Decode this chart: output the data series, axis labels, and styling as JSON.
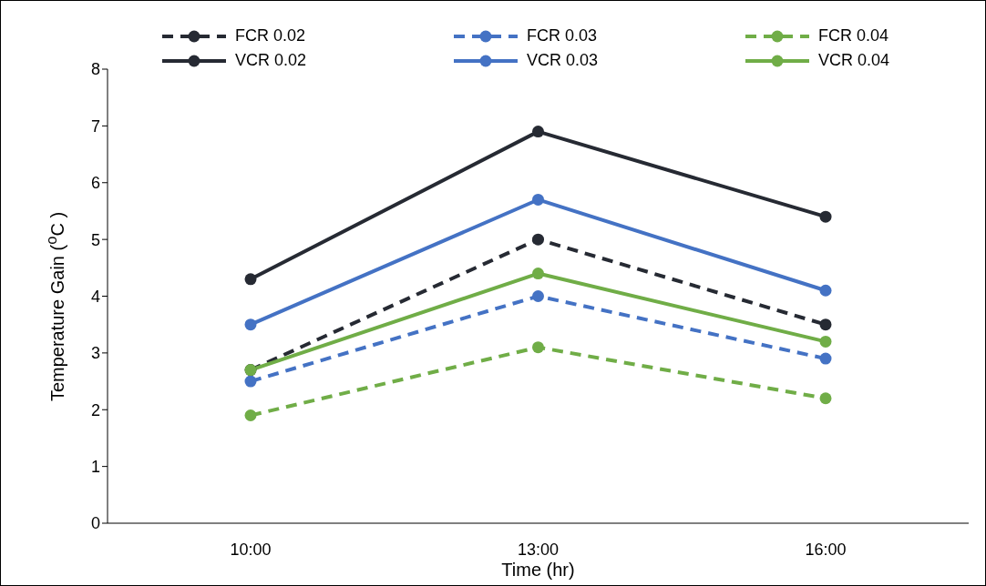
{
  "chart_data": {
    "type": "line",
    "xlabel": "Time (hr)",
    "ylabel": "Temperature Gain ($^{o}$C )",
    "categories": [
      "10:00",
      "13:00",
      "16:00"
    ],
    "ylim": [
      0,
      8
    ],
    "yticks": [
      0,
      1,
      2,
      3,
      4,
      5,
      6,
      7,
      8
    ],
    "grid": false,
    "legend": "top",
    "marker": "circle",
    "series": [
      {
        "name": "FCR 0.02",
        "color": "#262a33",
        "line_style": "dashed",
        "values": [
          2.7,
          5.0,
          3.5
        ]
      },
      {
        "name": "FCR 0.03",
        "color": "#4472c4",
        "line_style": "dashed",
        "values": [
          2.5,
          4.0,
          2.9
        ]
      },
      {
        "name": "FCR 0.04",
        "color": "#70ad47",
        "line_style": "dashed",
        "values": [
          1.9,
          3.1,
          2.2
        ]
      },
      {
        "name": "VCR 0.02",
        "color": "#262a33",
        "line_style": "solid",
        "values": [
          4.3,
          6.9,
          5.4
        ]
      },
      {
        "name": "VCR 0.03",
        "color": "#4472c4",
        "line_style": "solid",
        "values": [
          3.5,
          5.7,
          4.1
        ]
      },
      {
        "name": "VCR 0.04",
        "color": "#70ad47",
        "line_style": "solid",
        "values": [
          2.7,
          4.4,
          3.2
        ]
      }
    ]
  }
}
